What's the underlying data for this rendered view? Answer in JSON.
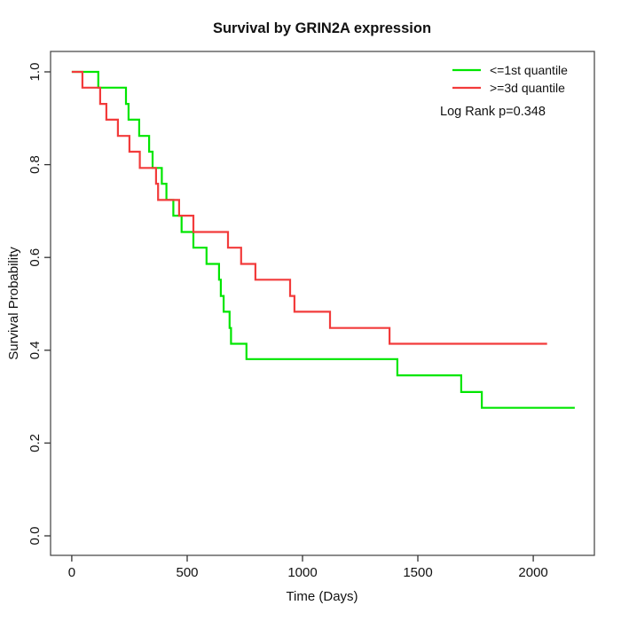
{
  "chart_data": {
    "type": "line",
    "subtype": "kaplan-meier-step",
    "title": "Survival by GRIN2A expression",
    "xlabel": "Time (Days)",
    "ylabel": "Survival Probability",
    "annotation": "Log Rank p=0.348",
    "log_rank_p": 0.348,
    "xticks": [
      0,
      500,
      1000,
      1500,
      2000
    ],
    "yticks": [
      0.0,
      0.2,
      0.4,
      0.6,
      0.8,
      1.0
    ],
    "xlim": [
      -92,
      2265
    ],
    "ylim": [
      -0.042,
      1.044
    ],
    "grid": false,
    "legend_position": "top-right",
    "series": [
      {
        "name": "<=1st quantile",
        "color": "#00e600",
        "start": [
          0,
          1.0
        ],
        "drops": [
          [
            115,
            0.966
          ],
          [
            235,
            0.931
          ],
          [
            246,
            0.897
          ],
          [
            292,
            0.862
          ],
          [
            335,
            0.828
          ],
          [
            350,
            0.793
          ],
          [
            390,
            0.759
          ],
          [
            410,
            0.724
          ],
          [
            440,
            0.69
          ],
          [
            476,
            0.655
          ],
          [
            527,
            0.621
          ],
          [
            584,
            0.586
          ],
          [
            638,
            0.552
          ],
          [
            646,
            0.517
          ],
          [
            658,
            0.483
          ],
          [
            684,
            0.448
          ],
          [
            690,
            0.414
          ],
          [
            757,
            0.381
          ],
          [
            1411,
            0.346
          ],
          [
            1688,
            0.31
          ],
          [
            1777,
            0.276
          ]
        ],
        "end_time": 2180,
        "final_survival": 0.276
      },
      {
        "name": ">=3d quantile",
        "color": "#f23b3b",
        "start": [
          0,
          1.0
        ],
        "drops": [
          [
            46,
            0.966
          ],
          [
            123,
            0.931
          ],
          [
            150,
            0.897
          ],
          [
            200,
            0.862
          ],
          [
            250,
            0.828
          ],
          [
            295,
            0.793
          ],
          [
            365,
            0.759
          ],
          [
            374,
            0.724
          ],
          [
            465,
            0.69
          ],
          [
            527,
            0.655
          ],
          [
            677,
            0.621
          ],
          [
            734,
            0.586
          ],
          [
            796,
            0.552
          ],
          [
            946,
            0.517
          ],
          [
            965,
            0.483
          ],
          [
            1119,
            0.448
          ],
          [
            1377,
            0.414
          ]
        ],
        "end_time": 2060,
        "final_survival": 0.414
      }
    ]
  }
}
